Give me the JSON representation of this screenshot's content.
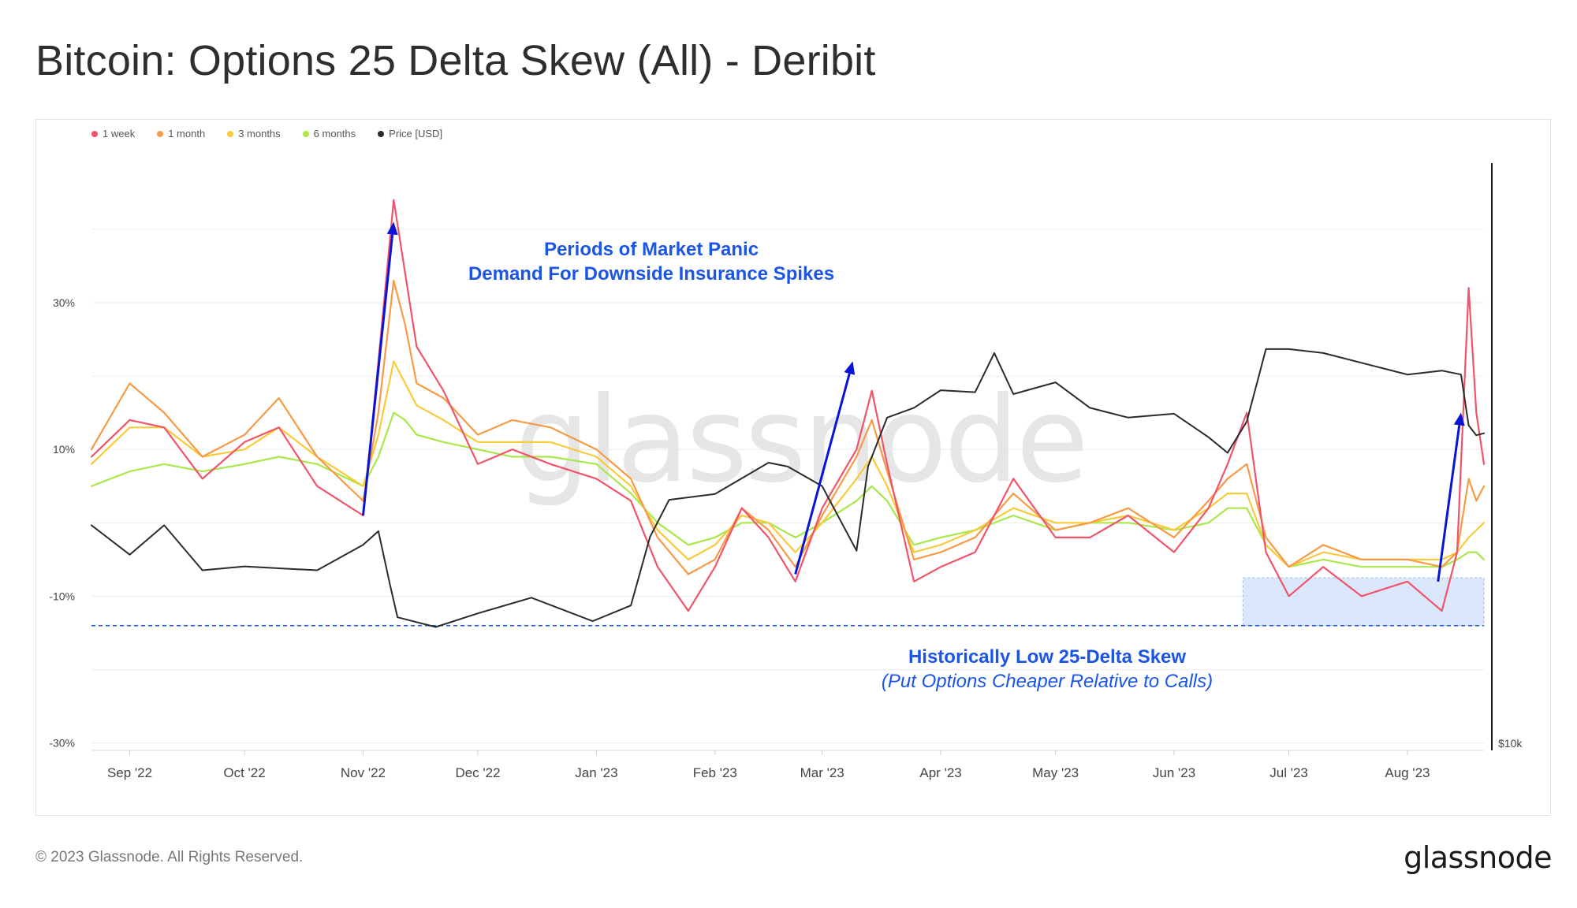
{
  "page": {
    "title": "Bitcoin: Options 25 Delta Skew (All) - Deribit",
    "copyright": "© 2023 Glassnode. All Rights Reserved.",
    "logo_text": "glassnode",
    "watermark": "glassnode"
  },
  "chart_data": {
    "type": "line",
    "title": "Bitcoin: Options 25 Delta Skew (All) - Deribit",
    "x_range": [
      "2022-08-22",
      "2023-08-21"
    ],
    "x_tick_labels": [
      "Sep '22",
      "Oct '22",
      "Nov '22",
      "Dec '22",
      "Jan '23",
      "Feb '23",
      "Mar '23",
      "Apr '23",
      "May '23",
      "Jun '23",
      "Jul '23",
      "Aug '23"
    ],
    "x_tick_dates": [
      "2022-09-01",
      "2022-10-01",
      "2022-11-01",
      "2022-12-01",
      "2023-01-01",
      "2023-02-01",
      "2023-03-01",
      "2023-04-01",
      "2023-05-01",
      "2023-06-01",
      "2023-07-01",
      "2023-08-01"
    ],
    "y_left": {
      "tick_labels": [
        "30%",
        "10%",
        "-10%",
        "-30%"
      ],
      "ticks": [
        30,
        10,
        -10,
        -30
      ],
      "range": [
        -31,
        49
      ]
    },
    "y_right": {
      "tick_labels": [
        "$10k"
      ],
      "ticks": [
        10000
      ],
      "range": [
        10000,
        40000
      ]
    },
    "grid": true,
    "legend_position": "top-left",
    "series": [
      {
        "name": "1 week",
        "color": "#f0546a",
        "axis": "left",
        "x": [
          "2022-08-22",
          "2022-09-01",
          "2022-09-10",
          "2022-09-20",
          "2022-10-01",
          "2022-10-10",
          "2022-10-20",
          "2022-11-01",
          "2022-11-05",
          "2022-11-09",
          "2022-11-12",
          "2022-11-15",
          "2022-11-22",
          "2022-12-01",
          "2022-12-10",
          "2022-12-20",
          "2023-01-01",
          "2023-01-10",
          "2023-01-17",
          "2023-01-25",
          "2023-02-01",
          "2023-02-08",
          "2023-02-15",
          "2023-02-22",
          "2023-03-01",
          "2023-03-10",
          "2023-03-14",
          "2023-03-18",
          "2023-03-25",
          "2023-04-01",
          "2023-04-10",
          "2023-04-20",
          "2023-05-01",
          "2023-05-10",
          "2023-05-20",
          "2023-06-01",
          "2023-06-10",
          "2023-06-15",
          "2023-06-20",
          "2023-06-25",
          "2023-07-01",
          "2023-07-10",
          "2023-07-20",
          "2023-08-01",
          "2023-08-10",
          "2023-08-14",
          "2023-08-17",
          "2023-08-19",
          "2023-08-21"
        ],
        "y": [
          9,
          14,
          13,
          6,
          11,
          13,
          5,
          1,
          22,
          44,
          34,
          24,
          18,
          8,
          10,
          8,
          6,
          3,
          -6,
          -12,
          -6,
          2,
          -2,
          -8,
          2,
          10,
          18,
          8,
          -8,
          -6,
          -4,
          6,
          -2,
          -2,
          1,
          -4,
          2,
          8,
          15,
          -4,
          -10,
          -6,
          -10,
          -8,
          -12,
          -4,
          32,
          15,
          8
        ]
      },
      {
        "name": "1 month",
        "color": "#f79a45",
        "axis": "left",
        "x": [
          "2022-08-22",
          "2022-09-01",
          "2022-09-10",
          "2022-09-20",
          "2022-10-01",
          "2022-10-10",
          "2022-10-20",
          "2022-11-01",
          "2022-11-05",
          "2022-11-09",
          "2022-11-12",
          "2022-11-15",
          "2022-11-22",
          "2022-12-01",
          "2022-12-10",
          "2022-12-20",
          "2023-01-01",
          "2023-01-10",
          "2023-01-17",
          "2023-01-25",
          "2023-02-01",
          "2023-02-08",
          "2023-02-15",
          "2023-02-22",
          "2023-03-01",
          "2023-03-10",
          "2023-03-14",
          "2023-03-18",
          "2023-03-25",
          "2023-04-01",
          "2023-04-10",
          "2023-04-20",
          "2023-05-01",
          "2023-05-10",
          "2023-05-20",
          "2023-06-01",
          "2023-06-10",
          "2023-06-15",
          "2023-06-20",
          "2023-06-25",
          "2023-07-01",
          "2023-07-10",
          "2023-07-20",
          "2023-08-01",
          "2023-08-10",
          "2023-08-14",
          "2023-08-17",
          "2023-08-19",
          "2023-08-21"
        ],
        "y": [
          10,
          19,
          15,
          9,
          12,
          17,
          9,
          3,
          15,
          33,
          27,
          19,
          17,
          12,
          14,
          13,
          10,
          6,
          -2,
          -7,
          -5,
          2,
          -1,
          -6,
          1,
          9,
          14,
          7,
          -5,
          -4,
          -2,
          4,
          -1,
          0,
          2,
          -2,
          3,
          6,
          8,
          -2,
          -6,
          -3,
          -5,
          -5,
          -6,
          -4,
          6,
          3,
          5
        ]
      },
      {
        "name": "3 months",
        "color": "#f7cb3a",
        "axis": "left",
        "x": [
          "2022-08-22",
          "2022-09-01",
          "2022-09-10",
          "2022-09-20",
          "2022-10-01",
          "2022-10-10",
          "2022-10-20",
          "2022-11-01",
          "2022-11-05",
          "2022-11-09",
          "2022-11-12",
          "2022-11-15",
          "2022-11-22",
          "2022-12-01",
          "2022-12-10",
          "2022-12-20",
          "2023-01-01",
          "2023-01-10",
          "2023-01-17",
          "2023-01-25",
          "2023-02-01",
          "2023-02-08",
          "2023-02-15",
          "2023-02-22",
          "2023-03-01",
          "2023-03-10",
          "2023-03-14",
          "2023-03-18",
          "2023-03-25",
          "2023-04-01",
          "2023-04-10",
          "2023-04-20",
          "2023-05-01",
          "2023-05-10",
          "2023-05-20",
          "2023-06-01",
          "2023-06-10",
          "2023-06-15",
          "2023-06-20",
          "2023-06-25",
          "2023-07-01",
          "2023-07-10",
          "2023-07-20",
          "2023-08-01",
          "2023-08-10",
          "2023-08-14",
          "2023-08-17",
          "2023-08-19",
          "2023-08-21"
        ],
        "y": [
          8,
          13,
          13,
          9,
          10,
          13,
          9,
          5,
          12,
          22,
          19,
          16,
          14,
          11,
          11,
          11,
          9,
          5,
          -1,
          -5,
          -3,
          1,
          0,
          -4,
          0,
          6,
          9,
          5,
          -4,
          -3,
          -1,
          2,
          0,
          0,
          1,
          -1,
          2,
          4,
          4,
          -3,
          -6,
          -4,
          -5,
          -5,
          -5,
          -4,
          -2,
          -1,
          0
        ]
      },
      {
        "name": "6 months",
        "color": "#a8e84a",
        "axis": "left",
        "x": [
          "2022-08-22",
          "2022-09-01",
          "2022-09-10",
          "2022-09-20",
          "2022-10-01",
          "2022-10-10",
          "2022-10-20",
          "2022-11-01",
          "2022-11-05",
          "2022-11-09",
          "2022-11-12",
          "2022-11-15",
          "2022-11-22",
          "2022-12-01",
          "2022-12-10",
          "2022-12-20",
          "2023-01-01",
          "2023-01-10",
          "2023-01-17",
          "2023-01-25",
          "2023-02-01",
          "2023-02-08",
          "2023-02-15",
          "2023-02-22",
          "2023-03-01",
          "2023-03-10",
          "2023-03-14",
          "2023-03-18",
          "2023-03-25",
          "2023-04-01",
          "2023-04-10",
          "2023-04-20",
          "2023-05-01",
          "2023-05-10",
          "2023-05-20",
          "2023-06-01",
          "2023-06-10",
          "2023-06-15",
          "2023-06-20",
          "2023-06-25",
          "2023-07-01",
          "2023-07-10",
          "2023-07-20",
          "2023-08-01",
          "2023-08-10",
          "2023-08-14",
          "2023-08-17",
          "2023-08-19",
          "2023-08-21"
        ],
        "y": [
          5,
          7,
          8,
          7,
          8,
          9,
          8,
          5,
          9,
          15,
          14,
          12,
          11,
          10,
          9,
          9,
          8,
          4,
          0,
          -3,
          -2,
          0,
          0,
          -2,
          0,
          3,
          5,
          3,
          -3,
          -2,
          -1,
          1,
          -1,
          0,
          0,
          -1,
          0,
          2,
          2,
          -3,
          -6,
          -5,
          -6,
          -6,
          -6,
          -5,
          -4,
          -4,
          -5
        ]
      },
      {
        "name": "Price [USD]",
        "color": "#2b2b2b",
        "axis": "right",
        "x": [
          "2022-08-22",
          "2022-09-01",
          "2022-09-10",
          "2022-09-20",
          "2022-10-01",
          "2022-10-10",
          "2022-10-20",
          "2022-11-01",
          "2022-11-05",
          "2022-11-08",
          "2022-11-10",
          "2022-11-20",
          "2022-12-01",
          "2022-12-15",
          "2022-12-31",
          "2023-01-10",
          "2023-01-15",
          "2023-01-20",
          "2023-02-01",
          "2023-02-15",
          "2023-02-20",
          "2023-03-01",
          "2023-03-10",
          "2023-03-13",
          "2023-03-18",
          "2023-03-25",
          "2023-04-01",
          "2023-04-10",
          "2023-04-15",
          "2023-04-20",
          "2023-05-01",
          "2023-05-10",
          "2023-05-20",
          "2023-06-01",
          "2023-06-10",
          "2023-06-15",
          "2023-06-20",
          "2023-06-25",
          "2023-07-01",
          "2023-07-10",
          "2023-07-20",
          "2023-08-01",
          "2023-08-10",
          "2023-08-15",
          "2023-08-17",
          "2023-08-19",
          "2023-08-21"
        ],
        "y": [
          21500,
          20000,
          21500,
          19200,
          19400,
          19300,
          19200,
          20500,
          21200,
          18500,
          16800,
          16300,
          17000,
          17800,
          16600,
          17400,
          20900,
          22800,
          23100,
          24700,
          24500,
          23500,
          20200,
          24500,
          27000,
          27500,
          28400,
          28300,
          30300,
          28200,
          28800,
          27500,
          27000,
          27200,
          26000,
          25200,
          26800,
          30500,
          30500,
          30300,
          29800,
          29200,
          29400,
          29200,
          26600,
          26100,
          26200
        ]
      }
    ],
    "annotations": {
      "panic_line1": "Periods of Market Panic",
      "panic_line2": "Demand For Downside Insurance Spikes",
      "low_line1": "Historically Low 25-Delta Skew",
      "low_line2": "(Put Options Cheaper Relative to Calls)",
      "low_threshold": -14,
      "low_band": {
        "x_start": "2023-06-19",
        "x_end": "2023-08-21",
        "y_bottom": -14,
        "y_top": -7.5
      },
      "arrows": [
        {
          "x_from": "2022-11-01",
          "y_from": 1,
          "x_to": "2022-11-09",
          "y_to": 41
        },
        {
          "x_from": "2023-02-22",
          "y_from": -7,
          "x_to": "2023-03-09",
          "y_to": 22
        },
        {
          "x_from": "2023-08-09",
          "y_from": -8,
          "x_to": "2023-08-15",
          "y_to": 15
        }
      ]
    },
    "colors": {
      "annotation_text": "#1a55e8",
      "arrow": "#0a14d6",
      "band_fill": "#cfe0fb",
      "threshold_line": "#1a55e8"
    }
  }
}
